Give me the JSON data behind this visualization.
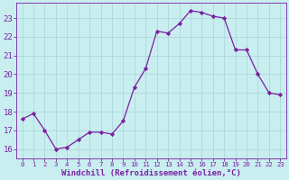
{
  "x": [
    0,
    1,
    2,
    3,
    4,
    5,
    6,
    7,
    8,
    9,
    10,
    11,
    12,
    13,
    14,
    15,
    16,
    17,
    18,
    19,
    20,
    21,
    22,
    23
  ],
  "y": [
    17.6,
    17.9,
    17.0,
    16.0,
    16.1,
    16.5,
    16.9,
    16.9,
    16.8,
    17.5,
    19.3,
    20.3,
    22.3,
    22.2,
    22.7,
    23.4,
    23.3,
    23.1,
    23.0,
    21.3,
    21.3,
    20.0,
    19.0,
    18.9
  ],
  "xlabel": "Windchill (Refroidissement éolien,°C)",
  "ylabel": "",
  "ylim": [
    15.5,
    23.8
  ],
  "xlim": [
    -0.5,
    23.5
  ],
  "yticks": [
    16,
    17,
    18,
    19,
    20,
    21,
    22,
    23
  ],
  "xticks": [
    0,
    1,
    2,
    3,
    4,
    5,
    6,
    7,
    8,
    9,
    10,
    11,
    12,
    13,
    14,
    15,
    16,
    17,
    18,
    19,
    20,
    21,
    22,
    23
  ],
  "line_color": "#7b1fa2",
  "marker": "D",
  "marker_size": 2.2,
  "bg_color": "#c8eef0",
  "grid_color": "#aad4d8",
  "axis_color": "#7b1fa2",
  "tick_color": "#7b1fa2",
  "label_color": "#7b1fa2",
  "linewidth": 0.9,
  "xlabel_fontsize": 6.5,
  "ytick_fontsize": 6.5,
  "xtick_fontsize": 5.2
}
